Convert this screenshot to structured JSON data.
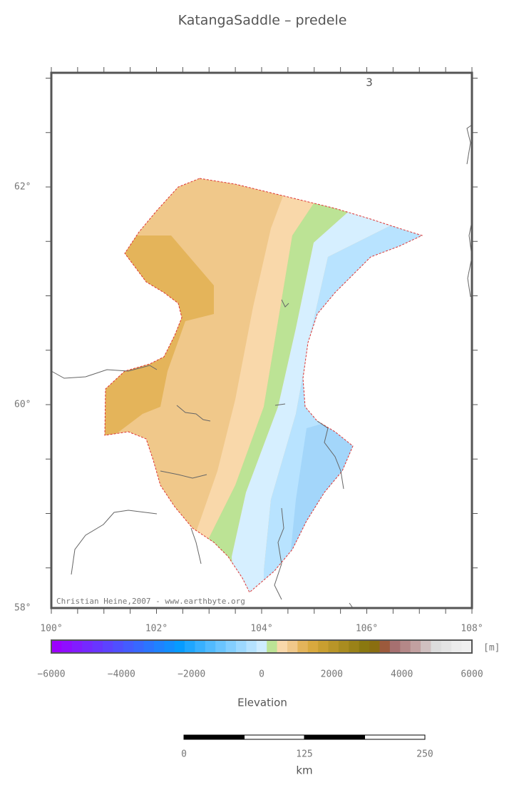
{
  "title": "KatangaSaddle – predele",
  "map": {
    "lat_labels": [
      "62°",
      "60°",
      "58°"
    ],
    "lon_labels": [
      "100°",
      "102°",
      "104°",
      "106°",
      "108°"
    ],
    "annotation": "3",
    "credit": "Christian Heine,2007 - www.earthbyte.org"
  },
  "colorbar": {
    "unit": "[m]",
    "labels": [
      "−6000",
      "−4000",
      "−2000",
      "0",
      "2000",
      "4000",
      "6000"
    ],
    "title": "Elevation"
  },
  "scale_bar": {
    "labels": [
      "0",
      "125",
      "250"
    ],
    "unit": "km"
  }
}
